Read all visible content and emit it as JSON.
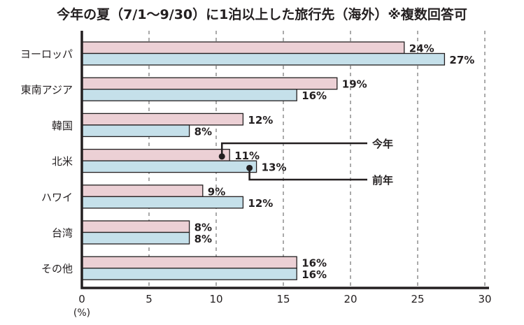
{
  "chart_data": {
    "type": "bar",
    "orientation": "horizontal",
    "title": "今年の夏（7/1〜9/30）に1泊以上した旅行先（海外）※複数回答可",
    "categories": [
      "ヨーロッパ",
      "東南アジア",
      "韓国",
      "北米",
      "ハワイ",
      "台湾",
      "その他"
    ],
    "series": [
      {
        "name": "今年",
        "color": "#ecd0d5",
        "values": [
          24,
          19,
          12,
          11,
          9,
          8,
          16
        ]
      },
      {
        "name": "前年",
        "color": "#c5e0ea",
        "values": [
          27,
          16,
          8,
          13,
          12,
          8,
          16
        ]
      }
    ],
    "value_suffix": "%",
    "xlabel": "(%)",
    "xlim": [
      0,
      30
    ],
    "xticks": [
      0,
      5,
      10,
      15,
      20,
      25,
      30
    ],
    "grid": "vertical dashed",
    "legend": "callout lines on 北米 bars"
  }
}
